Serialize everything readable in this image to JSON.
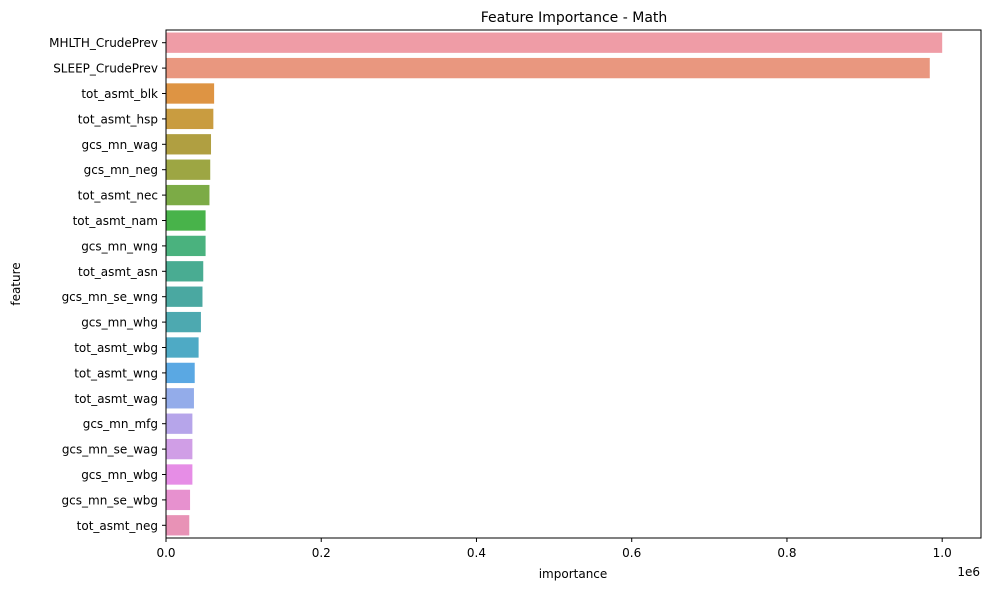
{
  "chart_data": {
    "type": "bar",
    "orientation": "horizontal",
    "title": "Feature Importance - Math",
    "xlabel": "importance",
    "ylabel": "feature",
    "x_scale_label": "1e6",
    "xlim": [
      0,
      1.05
    ],
    "x_ticks": [
      0.0,
      0.2,
      0.4,
      0.6,
      0.8,
      1.0
    ],
    "x_tick_labels": [
      "0.0",
      "0.2",
      "0.4",
      "0.6",
      "0.8",
      "1.0"
    ],
    "grid": false,
    "legend": "none",
    "categories": [
      "MHLTH_CrudePrev",
      "SLEEP_CrudePrev",
      "tot_asmt_blk",
      "tot_asmt_hsp",
      "gcs_mn_wag",
      "gcs_mn_neg",
      "tot_asmt_nec",
      "tot_asmt_nam",
      "gcs_mn_wng",
      "tot_asmt_asn",
      "gcs_mn_se_wng",
      "gcs_mn_whg",
      "tot_asmt_wbg",
      "tot_asmt_wng",
      "tot_asmt_wag",
      "gcs_mn_mfg",
      "gcs_mn_se_wag",
      "gcs_mn_wbg",
      "gcs_mn_se_wbg",
      "tot_asmt_neg"
    ],
    "values": [
      1.0,
      0.984,
      0.062,
      0.061,
      0.058,
      0.057,
      0.056,
      0.051,
      0.051,
      0.048,
      0.047,
      0.045,
      0.042,
      0.037,
      0.036,
      0.034,
      0.034,
      0.034,
      0.031,
      0.03
    ],
    "colors": [
      "#ef9ca6",
      "#e9977f",
      "#de9443",
      "#c99c40",
      "#b09f41",
      "#9da643",
      "#7cab46",
      "#48b34a",
      "#4ab27e",
      "#49ac92",
      "#4aa8a1",
      "#4da9b0",
      "#4eaac5",
      "#5aa8e3",
      "#93acea",
      "#b6a5ea",
      "#d09ee6",
      "#e68de6",
      "#e791cf",
      "#e892b6"
    ]
  }
}
